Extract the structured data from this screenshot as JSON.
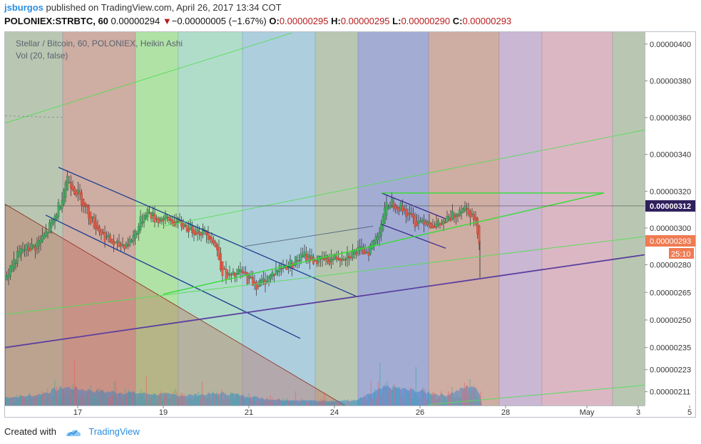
{
  "header": {
    "author": "jsburgos",
    "published_text": "published on TradingView.com, April 26, 2017 13:34 COT",
    "symbol": "POLONIEX:STRBTC, 60",
    "last_price": "0.00000294",
    "change_arrow": "▼",
    "change_text": "−0.00000005 (−1.67%)",
    "o_label": "O:",
    "o_value": "0.00000295",
    "h_label": "H:",
    "h_value": "0.00000295",
    "l_label": "L:",
    "l_value": "0.00000290",
    "c_label": "C:",
    "c_value": "0.00000293"
  },
  "legend": {
    "title": "Stellar / Bitcoin, 60, POLONIEX, Heikin Ashi",
    "volume": "Vol (20, false)"
  },
  "footer": {
    "created_with": "Created with",
    "brand": "TradingView"
  },
  "colors": {
    "up": "#26a69a",
    "down": "#ef5350",
    "price_tag": "#ef7b53",
    "crosshair_tag": "#2f1f5c",
    "channel": "#1a3d8f",
    "trend_green": "#33dd33",
    "trend_purple": "#5b3f9e"
  },
  "chart_data": {
    "type": "candlestick",
    "style": "Heikin Ashi",
    "y_unit": "BTC",
    "ylim": [
      2.035e-06,
      4.065e-06
    ],
    "y_ticks": [
      {
        "v": 4e-06,
        "label": "0.00000400"
      },
      {
        "v": 3.8e-06,
        "label": "0.00000380"
      },
      {
        "v": 3.6e-06,
        "label": "0.00000360"
      },
      {
        "v": 3.4e-06,
        "label": "0.00000340"
      },
      {
        "v": 3.2e-06,
        "label": "0.00000320"
      },
      {
        "v": 3e-06,
        "label": "0.00000300"
      },
      {
        "v": 2.8e-06,
        "label": "0.00000280"
      },
      {
        "v": 2.65e-06,
        "label": "0.00000265"
      },
      {
        "v": 2.5e-06,
        "label": "0.00000250"
      },
      {
        "v": 2.35e-06,
        "label": "0.00000235"
      },
      {
        "v": 2.23e-06,
        "label": "0.00000223"
      },
      {
        "v": 2.11e-06,
        "label": "0.00000211"
      }
    ],
    "x_domain_days": [
      15.3,
      30.25
    ],
    "x_ticks": [
      {
        "d": 17,
        "label": "17"
      },
      {
        "d": 19,
        "label": "19"
      },
      {
        "d": 21,
        "label": "21"
      },
      {
        "d": 24,
        "label": "24"
      },
      {
        "d": 26,
        "label": "26"
      },
      {
        "d": 28,
        "label": "28"
      },
      {
        "d": 32,
        "label": "May"
      },
      {
        "d": 34,
        "label": "3"
      },
      {
        "d": 36,
        "label": "5"
      }
    ],
    "x_tick_positions_days": [
      17,
      19,
      21,
      23,
      25,
      27,
      28.9,
      30.1,
      31.3
    ],
    "price_labels": [
      {
        "v": 3.12e-06,
        "label": "0.00000312",
        "kind": "crosshair"
      },
      {
        "v": 2.93e-06,
        "label": "0.00000293",
        "kind": "last"
      },
      {
        "label": "25:10",
        "kind": "countdown"
      }
    ],
    "anchor_closes": [
      [
        15.3,
        2.72e-06
      ],
      [
        15.45,
        2.8e-06
      ],
      [
        15.7,
        2.88e-06
      ],
      [
        16.0,
        2.9e-06
      ],
      [
        16.2,
        2.95e-06
      ],
      [
        16.45,
        3.05e-06
      ],
      [
        16.6,
        3.15e-06
      ],
      [
        16.75,
        3.28e-06
      ],
      [
        16.9,
        3.22e-06
      ],
      [
        17.1,
        3.15e-06
      ],
      [
        17.3,
        3.05e-06
      ],
      [
        17.6,
        2.96e-06
      ],
      [
        17.9,
        2.9e-06
      ],
      [
        18.2,
        2.92e-06
      ],
      [
        18.4,
        3e-06
      ],
      [
        18.6,
        3.1e-06
      ],
      [
        18.8,
        3.05e-06
      ],
      [
        19.0,
        3.05e-06
      ],
      [
        19.3,
        3.03e-06
      ],
      [
        19.6,
        3e-06
      ],
      [
        19.9,
        2.98e-06
      ],
      [
        20.1,
        2.96e-06
      ],
      [
        20.25,
        2.88e-06
      ],
      [
        20.4,
        2.75e-06
      ],
      [
        20.6,
        2.73e-06
      ],
      [
        20.8,
        2.76e-06
      ],
      [
        21.0,
        2.72e-06
      ],
      [
        21.2,
        2.69e-06
      ],
      [
        21.4,
        2.72e-06
      ],
      [
        21.7,
        2.78e-06
      ],
      [
        22.0,
        2.81e-06
      ],
      [
        22.3,
        2.85e-06
      ],
      [
        22.6,
        2.82e-06
      ],
      [
        22.9,
        2.83e-06
      ],
      [
        23.2,
        2.85e-06
      ],
      [
        23.5,
        2.87e-06
      ],
      [
        23.8,
        2.88e-06
      ],
      [
        24.0,
        2.96e-06
      ],
      [
        24.15,
        3.08e-06
      ],
      [
        24.3,
        3.15e-06
      ],
      [
        24.5,
        3.12e-06
      ],
      [
        24.7,
        3.08e-06
      ],
      [
        24.9,
        3.03e-06
      ],
      [
        25.1,
        3.05e-06
      ],
      [
        25.4,
        3.01e-06
      ],
      [
        25.7,
        3.05e-06
      ],
      [
        26.0,
        3.12e-06
      ],
      [
        26.15,
        3.1e-06
      ],
      [
        26.3,
        3.02e-06
      ],
      [
        26.4,
        2.93e-06
      ]
    ],
    "volume": {
      "ylim": [
        0,
        1
      ],
      "anchor_levels": [
        [
          15.3,
          0.2
        ],
        [
          16.0,
          0.25
        ],
        [
          16.7,
          0.45
        ],
        [
          17.5,
          0.35
        ],
        [
          18.5,
          0.3
        ],
        [
          19.5,
          0.25
        ],
        [
          20.5,
          0.3
        ],
        [
          21.5,
          0.15
        ],
        [
          22.5,
          0.12
        ],
        [
          23.5,
          0.12
        ],
        [
          24.2,
          0.45
        ],
        [
          25.0,
          0.35
        ],
        [
          25.6,
          0.25
        ],
        [
          26.2,
          0.5
        ],
        [
          26.4,
          0.3
        ]
      ]
    },
    "vertical_bands": [
      {
        "from": 15.3,
        "to": 16.65,
        "color": "#8ea482"
      },
      {
        "from": 16.65,
        "to": 18.35,
        "color": "#b07a6a"
      },
      {
        "from": 18.35,
        "to": 19.35,
        "color": "#7fd070"
      },
      {
        "from": 19.35,
        "to": 20.85,
        "color": "#7fc8a8"
      },
      {
        "from": 20.85,
        "to": 22.55,
        "color": "#7ab0c8"
      },
      {
        "from": 22.55,
        "to": 23.55,
        "color": "#8ea482"
      },
      {
        "from": 23.55,
        "to": 25.2,
        "color": "#6a7ab8"
      },
      {
        "from": 25.2,
        "to": 26.85,
        "color": "#b07a6a"
      },
      {
        "from": 26.85,
        "to": 27.85,
        "color": "#a88ab8"
      },
      {
        "from": 27.85,
        "to": 29.5,
        "color": "#c58aa0"
      },
      {
        "from": 29.5,
        "to": 31.9,
        "color": "#8ea482"
      }
    ],
    "red_wedge": {
      "points": [
        [
          15.3,
          3.13e-06
        ],
        [
          23.5,
          2e-06
        ],
        [
          15.3,
          2e-06
        ]
      ],
      "color": "#c06050"
    },
    "trend_lines": [
      {
        "from": [
          16.55,
          3.33e-06
        ],
        "to": [
          23.5,
          2.63e-06
        ],
        "color": "#1a3d8f",
        "width": 1.3
      },
      {
        "from": [
          16.25,
          3.07e-06
        ],
        "to": [
          22.2,
          2.4e-06
        ],
        "color": "#1a3d8f",
        "width": 1.3
      },
      {
        "from": [
          24.1,
          3.19e-06
        ],
        "to": [
          25.6,
          3.05e-06
        ],
        "color": "#3a2a8a",
        "width": 1.3
      },
      {
        "from": [
          24.1,
          3.02e-06
        ],
        "to": [
          25.6,
          2.89e-06
        ],
        "color": "#3a2a8a",
        "width": 1.3
      },
      {
        "from": [
          19.0,
          2.64e-06
        ],
        "to": [
          29.3,
          3.19e-06
        ],
        "color": "#33dd33",
        "width": 1.4
      },
      {
        "from": [
          24.1,
          3.19e-06
        ],
        "to": [
          29.3,
          3.19e-06
        ],
        "color": "#33dd33",
        "width": 1.4
      },
      {
        "from": [
          15.3,
          2.53e-06
        ],
        "to": [
          31.9,
          3e-06
        ],
        "color": "#55dd55",
        "width": 0.9
      },
      {
        "from": [
          15.3,
          3.57e-06
        ],
        "to": [
          22.0,
          4.06e-06
        ],
        "color": "#55dd55",
        "width": 0.9
      },
      {
        "from": [
          19.0,
          3.01e-06
        ],
        "to": [
          31.9,
          3.61e-06
        ],
        "color": "#55dd55",
        "width": 0.9
      },
      {
        "from": [
          25.2,
          2.04e-06
        ],
        "to": [
          31.9,
          2.18e-06
        ],
        "color": "#55dd55",
        "width": 0.9
      },
      {
        "from": [
          15.3,
          2.35e-06
        ],
        "to": [
          31.9,
          2.91e-06
        ],
        "color": "#5b3f9e",
        "width": 1.8
      },
      {
        "from": [
          20.9,
          2.9e-06
        ],
        "to": [
          23.9,
          3.01e-06
        ],
        "color": "#4a5a7a",
        "width": 0.8
      },
      {
        "from": [
          15.3,
          3.61e-06
        ],
        "to": [
          16.7,
          3.6e-06
        ],
        "color": "#888888",
        "width": 0.8,
        "dash": true
      }
    ],
    "crosshair_value": 3.12e-06
  }
}
